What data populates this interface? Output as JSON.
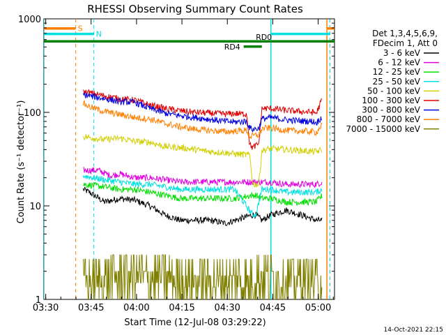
{
  "chart_data": {
    "type": "line",
    "title": "RHESSI Observing Summary Count Rates",
    "xlabel": "Start Time (12-Jul-08 03:29:22)",
    "ylabel": "Count Rate (s⁻¹ detector⁻¹)",
    "x_unit": "minutes after 03:29:22",
    "xlim": [
      0,
      96
    ],
    "ylim": [
      1,
      1000
    ],
    "y_scale": "log",
    "x_ticks": [
      {
        "value": 0.6,
        "label": "03:30"
      },
      {
        "value": 15.6,
        "label": "03:45"
      },
      {
        "value": 30.6,
        "label": "04:00"
      },
      {
        "value": 45.6,
        "label": "04:15"
      },
      {
        "value": 60.6,
        "label": "04:30"
      },
      {
        "value": 75.6,
        "label": "04:45"
      },
      {
        "value": 90.6,
        "label": "05:00"
      }
    ],
    "y_ticks": [
      {
        "value": 1,
        "label": "1"
      },
      {
        "value": 10,
        "label": "10"
      },
      {
        "value": 100,
        "label": "100"
      },
      {
        "value": 1000,
        "label": "1000"
      }
    ],
    "legend_header": [
      "Det 1,3,4,5,6,9,",
      "FDecim 1, Att 0"
    ],
    "legend_position": "right",
    "series": [
      {
        "name": "3 - 6 keV",
        "color": "#000000",
        "points": [
          [
            13,
            15
          ],
          [
            15,
            14
          ],
          [
            20,
            11
          ],
          [
            25,
            12
          ],
          [
            30,
            11.5
          ],
          [
            35,
            10
          ],
          [
            40,
            8
          ],
          [
            45,
            7
          ],
          [
            50,
            7
          ],
          [
            55,
            7
          ],
          [
            60,
            6.5
          ],
          [
            63,
            7
          ],
          [
            69,
            8
          ],
          [
            70,
            8
          ],
          [
            72,
            7
          ],
          [
            75,
            8
          ],
          [
            80,
            9
          ],
          [
            85,
            8
          ],
          [
            90,
            7
          ],
          [
            92,
            7
          ]
        ]
      },
      {
        "name": "6 - 12 keV",
        "color": "#e000e0",
        "points": [
          [
            13,
            24
          ],
          [
            18,
            24
          ],
          [
            22,
            21
          ],
          [
            25,
            22
          ],
          [
            30,
            20
          ],
          [
            35,
            20
          ],
          [
            40,
            19
          ],
          [
            45,
            18
          ],
          [
            50,
            18
          ],
          [
            55,
            18
          ],
          [
            60,
            18
          ],
          [
            63,
            18
          ],
          [
            69,
            18
          ],
          [
            75,
            18
          ],
          [
            80,
            17
          ],
          [
            85,
            17
          ],
          [
            90,
            17
          ],
          [
            92,
            18
          ]
        ]
      },
      {
        "name": "12 - 25 keV",
        "color": "#00e000",
        "points": [
          [
            13,
            17
          ],
          [
            20,
            16
          ],
          [
            25,
            15
          ],
          [
            30,
            15
          ],
          [
            35,
            14
          ],
          [
            40,
            13
          ],
          [
            45,
            12
          ],
          [
            50,
            12
          ],
          [
            55,
            12
          ],
          [
            60,
            12
          ],
          [
            63,
            12
          ],
          [
            69,
            13
          ],
          [
            70,
            13
          ],
          [
            72,
            12
          ],
          [
            75,
            12
          ],
          [
            80,
            11
          ],
          [
            85,
            11
          ],
          [
            90,
            11
          ],
          [
            92,
            13
          ]
        ]
      },
      {
        "name": "25 - 50 keV",
        "color": "#00e0e0",
        "points": [
          [
            13,
            21
          ],
          [
            20,
            19
          ],
          [
            25,
            18
          ],
          [
            30,
            17
          ],
          [
            35,
            17
          ],
          [
            40,
            16
          ],
          [
            45,
            15
          ],
          [
            50,
            15
          ],
          [
            55,
            15
          ],
          [
            60,
            15
          ],
          [
            63,
            15
          ],
          [
            69,
            8
          ],
          [
            70,
            8
          ],
          [
            72,
            15
          ],
          [
            75,
            15
          ],
          [
            80,
            14
          ],
          [
            85,
            14
          ],
          [
            90,
            14
          ],
          [
            92,
            15
          ]
        ]
      },
      {
        "name": "50 - 100 keV",
        "color": "#d0d000",
        "points": [
          [
            13,
            55
          ],
          [
            15,
            54
          ],
          [
            20,
            51
          ],
          [
            25,
            53
          ],
          [
            30,
            49
          ],
          [
            35,
            48
          ],
          [
            40,
            43
          ],
          [
            45,
            42
          ],
          [
            50,
            40
          ],
          [
            55,
            38
          ],
          [
            60,
            37
          ],
          [
            63,
            36
          ],
          [
            68,
            35
          ],
          [
            69,
            17
          ],
          [
            70,
            17
          ],
          [
            71,
            17
          ],
          [
            72,
            39
          ],
          [
            75,
            41
          ],
          [
            80,
            40
          ],
          [
            85,
            39
          ],
          [
            90,
            38
          ],
          [
            92,
            40
          ]
        ]
      },
      {
        "name": "100 - 300 keV",
        "color": "#e00000",
        "points": [
          [
            13,
            165
          ],
          [
            15,
            162
          ],
          [
            20,
            150
          ],
          [
            25,
            140
          ],
          [
            30,
            135
          ],
          [
            35,
            120
          ],
          [
            40,
            110
          ],
          [
            45,
            104
          ],
          [
            50,
            100
          ],
          [
            55,
            98
          ],
          [
            60,
            96
          ],
          [
            63,
            97
          ],
          [
            67,
            96
          ],
          [
            68,
            45
          ],
          [
            69,
            42
          ],
          [
            70,
            44
          ],
          [
            71,
            46
          ],
          [
            72,
            110
          ],
          [
            75,
            110
          ],
          [
            80,
            105
          ],
          [
            85,
            102
          ],
          [
            89,
            100
          ],
          [
            90,
            98
          ],
          [
            92,
            140
          ]
        ]
      },
      {
        "name": "300 - 800 keV",
        "color": "#0000e0",
        "points": [
          [
            13,
            155
          ],
          [
            15,
            150
          ],
          [
            20,
            140
          ],
          [
            25,
            130
          ],
          [
            30,
            128
          ],
          [
            35,
            110
          ],
          [
            40,
            98
          ],
          [
            45,
            92
          ],
          [
            50,
            88
          ],
          [
            55,
            84
          ],
          [
            60,
            80
          ],
          [
            63,
            79
          ],
          [
            67,
            80
          ],
          [
            68,
            68
          ],
          [
            69,
            66
          ],
          [
            70,
            67
          ],
          [
            71,
            67
          ],
          [
            72,
            85
          ],
          [
            75,
            88
          ],
          [
            80,
            83
          ],
          [
            85,
            81
          ],
          [
            89,
            80
          ],
          [
            90,
            77
          ],
          [
            92,
            90
          ]
        ]
      },
      {
        "name": "800 - 7000 keV",
        "color": "#ff8000",
        "points": [
          [
            13,
            125
          ],
          [
            15,
            115
          ],
          [
            20,
            102
          ],
          [
            25,
            95
          ],
          [
            30,
            88
          ],
          [
            35,
            85
          ],
          [
            40,
            76
          ],
          [
            45,
            70
          ],
          [
            50,
            66
          ],
          [
            55,
            64
          ],
          [
            60,
            62
          ],
          [
            63,
            63
          ],
          [
            67,
            64
          ],
          [
            68,
            55
          ],
          [
            69,
            56
          ],
          [
            70,
            57
          ],
          [
            71,
            57
          ],
          [
            72,
            67
          ],
          [
            75,
            68
          ],
          [
            80,
            64
          ],
          [
            85,
            63
          ],
          [
            89,
            62
          ],
          [
            90,
            61
          ],
          [
            92,
            75
          ]
        ]
      },
      {
        "name": "7000 - 15000 keV",
        "color": "#808000",
        "points": [
          [
            13,
            1.4
          ],
          [
            16,
            2
          ],
          [
            19,
            1.4
          ],
          [
            22,
            2
          ],
          [
            25,
            3
          ],
          [
            28,
            2
          ],
          [
            32,
            3
          ],
          [
            35,
            2
          ],
          [
            38,
            3
          ],
          [
            42,
            2
          ],
          [
            45,
            1.5
          ],
          [
            48,
            2
          ],
          [
            52,
            1.5
          ],
          [
            55,
            2
          ],
          [
            60,
            1
          ],
          [
            63,
            1.2
          ],
          [
            66,
            2
          ],
          [
            69,
            2
          ],
          [
            72,
            3
          ],
          [
            75,
            3
          ],
          [
            78,
            2
          ],
          [
            82,
            2
          ],
          [
            85,
            1.5
          ],
          [
            88,
            2
          ],
          [
            90,
            1.2
          ],
          [
            92,
            2
          ]
        ]
      }
    ],
    "annotations": [
      {
        "label": "S",
        "color": "#ff8000",
        "x_start": 0,
        "x_end": 10.5,
        "y": 790
      },
      {
        "label": "N",
        "color": "#00e0e0",
        "x_start": 0,
        "x_end": 16.5,
        "y": 690
      },
      {
        "label": "",
        "color": "#00e0e0",
        "x_start": 75,
        "x_end": 94.5,
        "y": 690
      },
      {
        "label": "",
        "color": "#ff8000",
        "x_start": 93.5,
        "x_end": 96,
        "y": 790
      },
      {
        "label": "RD0",
        "color": "#008000",
        "x_start": 0,
        "x_end": 96,
        "y": 575
      },
      {
        "label": "RD4",
        "color": "#008000",
        "x_start": 66,
        "x_end": 72,
        "y": 505
      }
    ],
    "vertical_markers": [
      {
        "x": 10.5,
        "color": "#ff8000",
        "style": "dashed"
      },
      {
        "x": 16.5,
        "color": "#00e0e0",
        "style": "dashed"
      },
      {
        "x": 75,
        "color": "#00e0e0",
        "style": "solid"
      },
      {
        "x": 93.5,
        "color": "#ff8000",
        "style": "solid"
      },
      {
        "x": 94.5,
        "color": "#00e0e0",
        "style": "dashed"
      },
      {
        "x": 0,
        "color": "#00e0e0",
        "style": "solid"
      }
    ]
  },
  "footer": {
    "timestamp": "14-Oct-2021 22:15"
  }
}
